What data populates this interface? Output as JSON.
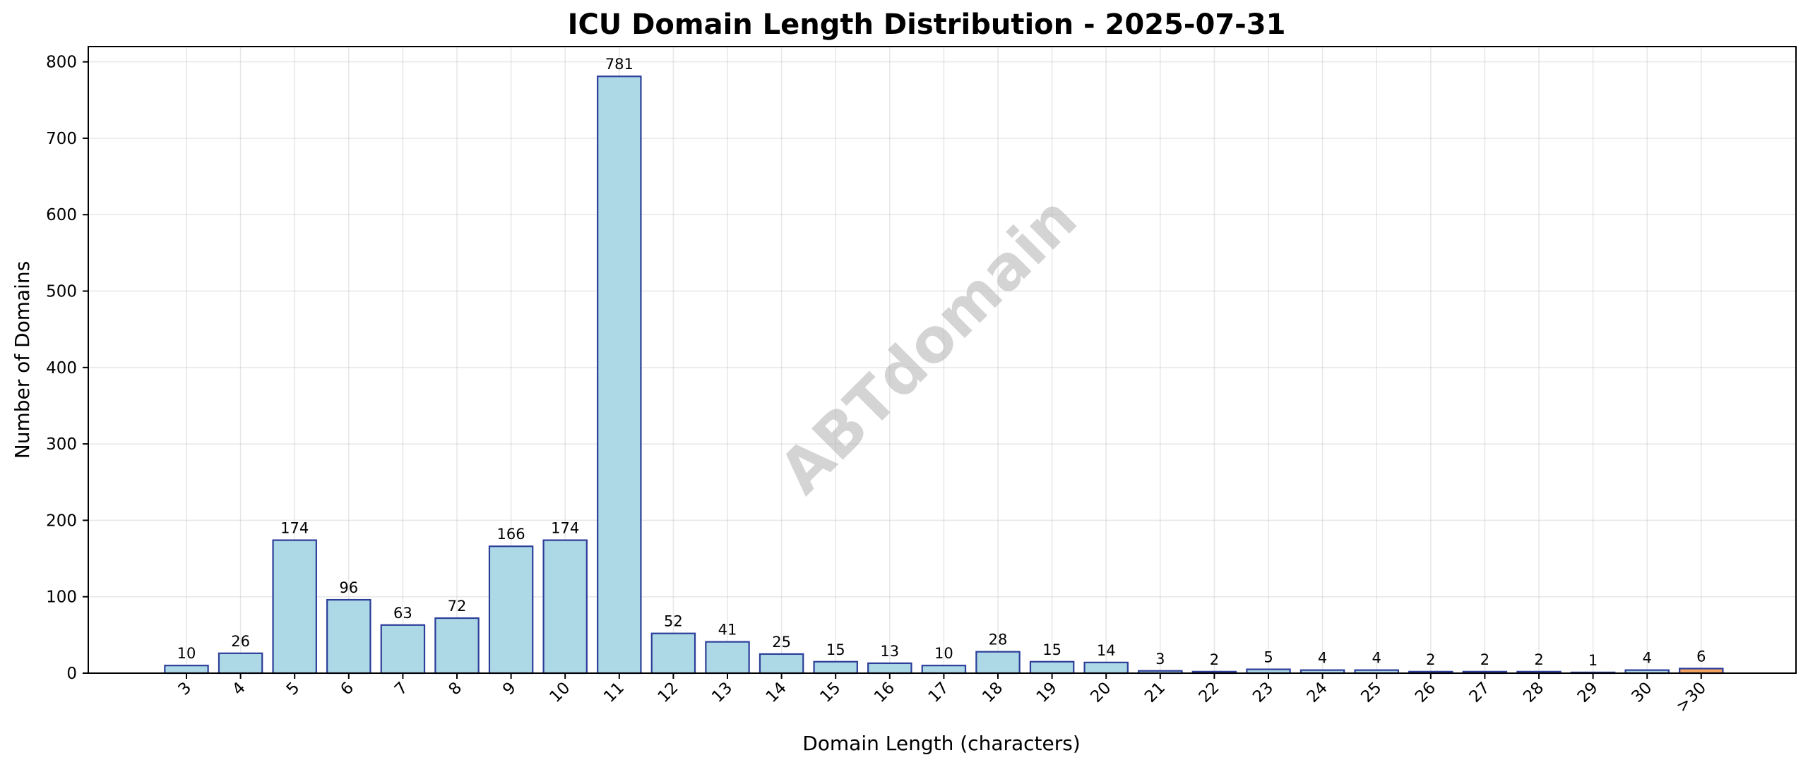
{
  "chart_data": {
    "type": "bar",
    "title": "ICU Domain Length Distribution - 2025-07-31",
    "xlabel": "Domain Length (characters)",
    "ylabel": "Number of Domains",
    "categories": [
      "3",
      "4",
      "5",
      "6",
      "7",
      "8",
      "9",
      "10",
      "11",
      "12",
      "13",
      "14",
      "15",
      "16",
      "17",
      "18",
      "19",
      "20",
      "21",
      "22",
      "23",
      "24",
      "25",
      "26",
      "27",
      "28",
      "29",
      "30",
      ">30"
    ],
    "values": [
      10,
      26,
      174,
      96,
      63,
      72,
      166,
      174,
      781,
      52,
      41,
      25,
      15,
      13,
      10,
      28,
      15,
      14,
      3,
      2,
      5,
      4,
      4,
      2,
      2,
      2,
      1,
      4,
      6
    ],
    "ylim": [
      0,
      820
    ],
    "yticks": [
      0,
      100,
      200,
      300,
      400,
      500,
      600,
      700,
      800
    ],
    "grid": true,
    "bar_color": "#ADD8E6",
    "bar_edge_color": "#2C3E99",
    "highlight_bar_color": "#F4A460",
    "highlight_category": ">30",
    "watermark": "ABTdomain"
  }
}
